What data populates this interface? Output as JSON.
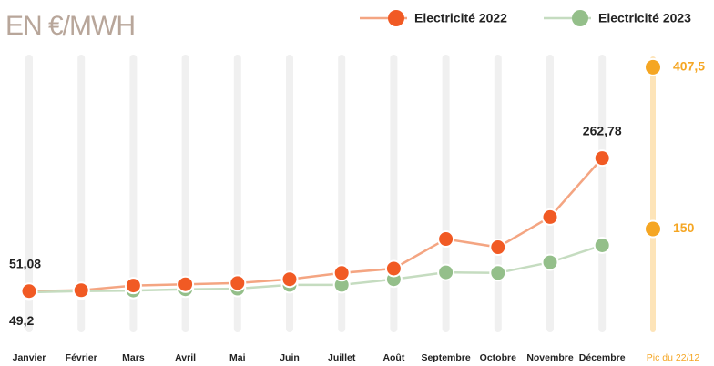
{
  "chart_data": {
    "type": "line",
    "title": "EN €/MWH",
    "categories": [
      "Janvier",
      "Février",
      "Mars",
      "Avril",
      "Mai",
      "Juin",
      "Juillet",
      "Août",
      "Septembre",
      "Octobre",
      "Novembre",
      "Décembre"
    ],
    "series": [
      {
        "name": "Electricité 2022",
        "color": "#f15a24",
        "line_color": "#f4a582",
        "values": [
          51.08,
          52.5,
          60,
          62,
          64,
          70,
          80,
          87,
          134,
          121,
          169,
          262.78
        ],
        "value_labels": [
          "51,08",
          null,
          null,
          null,
          null,
          null,
          null,
          null,
          null,
          null,
          null,
          "262,78"
        ]
      },
      {
        "name": "Electricité 2023",
        "color": "#94bf8a",
        "line_color": "#c5dcc0",
        "values": [
          49.2,
          51,
          52,
          54,
          55,
          61,
          61,
          70,
          81,
          80,
          97,
          124
        ],
        "value_labels": [
          "49,2",
          null,
          null,
          null,
          null,
          null,
          null,
          null,
          null,
          null,
          null,
          null
        ]
      }
    ],
    "peak": {
      "label": "Pic du 22/12",
      "color": "#f5a623",
      "values": [
        407.5,
        150
      ],
      "value_labels": [
        "407,5",
        "150"
      ]
    },
    "ylim": [
      0,
      500
    ]
  }
}
